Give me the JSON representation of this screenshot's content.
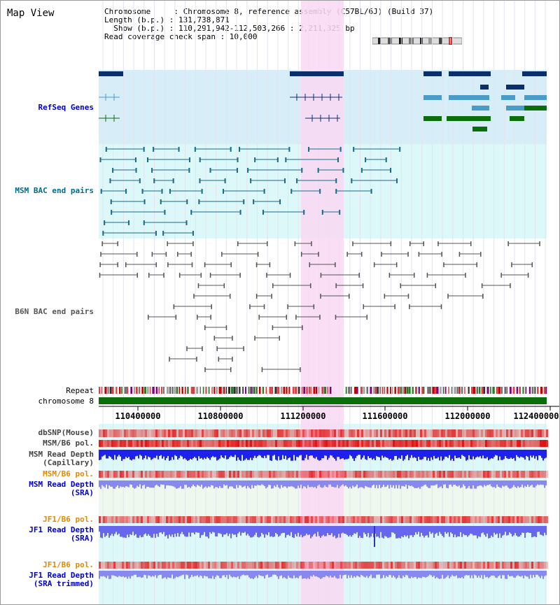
{
  "view": {
    "title": "Map View"
  },
  "header": {
    "line1": "Chromosome     : Chromosome 8, reference assembly (C57BL/6J) (Build 37)",
    "line2": "Length (b.p.) : 131,738,871",
    "line3": "  Show (b.p.) : 110,291,942-112,503,266 : 2,211,325 bp",
    "line4": "Read coverage check span : 10,000"
  },
  "tracks": {
    "refseq": "RefSeq Genes",
    "msm_bac": "MSM BAC end pairs",
    "b6n_bac": "B6N BAC end pairs",
    "repeat": "Repeat",
    "chromosome": "chromosome 8",
    "dbsnp": "dbSNP(Mouse)",
    "msm_b6_pol_1": "MSM/B6 pol.",
    "msm_depth_cap_1": "MSM Read Depth",
    "msm_depth_cap_2": "(Capillary)",
    "msm_b6_pol_2": "MSM/B6 pol.",
    "msm_depth_sra_1": "MSM Read Depth",
    "msm_depth_sra_2": "(SRA)",
    "jf1_b6_pol_1": "JF1/B6 pol.",
    "jf1_depth_sra_1": "JF1 Read Depth",
    "jf1_depth_sra_2": "(SRA)",
    "jf1_b6_pol_2": "JF1/B6 pol.",
    "jf1_depth_trim_1": "JF1 Read Depth",
    "jf1_depth_trim_2": "(SRA trimmed)"
  },
  "axis": {
    "ticks": [
      "110400000",
      "110800000",
      "111200000",
      "111600000",
      "112000000",
      "112400000"
    ]
  },
  "colors": {
    "highlight": "#f9d8f3",
    "refseq_bg": "#d7eef9",
    "bac_bg": "#dcf8f8",
    "gene_navy": "#0b2f6b",
    "gene_light": "#4a9cc8",
    "gene_green": "#0a6e0a",
    "chromosome_green": "#0a6e0a",
    "depth_blue": "#2020ee",
    "depth_light": "#8888f0"
  }
}
